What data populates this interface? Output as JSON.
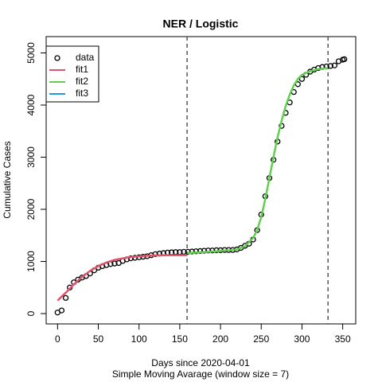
{
  "chart_data": {
    "type": "scatter",
    "title": "NER / Logistic",
    "xlabel": "Days since 2020-04-01",
    "subtitle": "Simple Moving Avarage (window size = 7)",
    "ylabel": "Cumulative Cases",
    "xlim": [
      -14,
      366
    ],
    "ylim": [
      -198,
      5313
    ],
    "xticks": [
      0,
      50,
      100,
      150,
      200,
      250,
      300,
      350
    ],
    "yticks": [
      0,
      1000,
      2000,
      3000,
      4000,
      5000
    ],
    "vlines": [
      159,
      332
    ],
    "legend": "topleft",
    "series": [
      {
        "name": "data",
        "color": "#000000",
        "x": [
          0,
          5,
          10,
          15,
          20,
          25,
          30,
          35,
          40,
          45,
          50,
          55,
          60,
          65,
          70,
          75,
          80,
          85,
          90,
          95,
          100,
          105,
          110,
          115,
          120,
          125,
          130,
          135,
          140,
          145,
          150,
          155,
          160,
          165,
          170,
          175,
          180,
          185,
          190,
          195,
          200,
          205,
          210,
          215,
          220,
          225,
          230,
          235,
          240,
          245,
          250,
          255,
          260,
          265,
          270,
          275,
          280,
          285,
          290,
          295,
          300,
          305,
          310,
          315,
          320,
          325,
          330,
          335,
          340,
          345,
          350,
          352
        ],
        "values": [
          20,
          60,
          300,
          500,
          600,
          650,
          690,
          720,
          770,
          830,
          880,
          910,
          930,
          950,
          960,
          970,
          1010,
          1040,
          1060,
          1070,
          1080,
          1090,
          1100,
          1120,
          1140,
          1150,
          1160,
          1170,
          1175,
          1180,
          1180,
          1185,
          1185,
          1190,
          1195,
          1200,
          1205,
          1210,
          1210,
          1215,
          1215,
          1220,
          1220,
          1220,
          1230,
          1260,
          1300,
          1340,
          1420,
          1600,
          1900,
          2250,
          2600,
          2950,
          3300,
          3600,
          3850,
          4050,
          4250,
          4400,
          4500,
          4580,
          4640,
          4680,
          4710,
          4730,
          4740,
          4750,
          4760,
          4840,
          4870,
          4880
        ]
      },
      {
        "name": "fit1",
        "color": "#DF536B",
        "x": [
          0,
          10,
          20,
          30,
          40,
          50,
          60,
          70,
          80,
          90,
          100,
          110,
          120,
          130,
          140,
          150,
          159
        ],
        "values": [
          250,
          400,
          560,
          700,
          820,
          910,
          980,
          1030,
          1060,
          1085,
          1100,
          1110,
          1115,
          1118,
          1120,
          1120,
          1120
        ]
      },
      {
        "name": "fit2",
        "color": "#61D04F",
        "x": [
          159,
          180,
          200,
          220,
          230,
          240,
          245,
          250,
          255,
          260,
          265,
          270,
          275,
          280,
          285,
          290,
          295,
          300,
          310,
          320,
          332
        ],
        "values": [
          1160,
          1180,
          1200,
          1230,
          1290,
          1450,
          1600,
          1850,
          2200,
          2600,
          3000,
          3380,
          3700,
          3980,
          4200,
          4380,
          4500,
          4580,
          4650,
          4690,
          4710
        ]
      },
      {
        "name": "fit3",
        "color": "#2297E6"
      }
    ]
  }
}
